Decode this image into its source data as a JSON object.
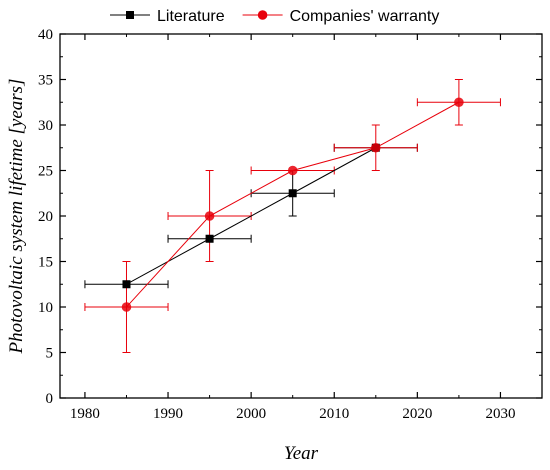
{
  "chart_data": {
    "type": "line",
    "xlabel": "Year",
    "ylabel": "Photovoltaic system lifetime [years]",
    "xlim": [
      1977,
      2035
    ],
    "ylim": [
      0,
      40
    ],
    "x_ticks": [
      1980,
      1990,
      2000,
      2010,
      2020,
      2030
    ],
    "y_ticks": [
      0,
      5,
      10,
      15,
      20,
      25,
      30,
      35,
      40
    ],
    "grid": false,
    "legend_position": "top",
    "series": [
      {
        "name": "Literature",
        "color": "#000000",
        "marker": "square",
        "points": [
          {
            "x": 1985,
            "y": 12.5,
            "x_err": 5,
            "y_err": [
              12.5,
              12.5
            ]
          },
          {
            "x": 1995,
            "y": 17.5,
            "x_err": 5,
            "y_err": [
              17.5,
              17.5
            ]
          },
          {
            "x": 2005,
            "y": 22.5,
            "x_err": 5,
            "y_err": [
              20,
              25
            ]
          },
          {
            "x": 2015,
            "y": 27.5,
            "x_err": 5,
            "y_err": [
              27.5,
              27.5
            ]
          }
        ]
      },
      {
        "name": "Companies' warranty",
        "color": "#e8000b",
        "marker": "circle",
        "points": [
          {
            "x": 1985,
            "y": 10,
            "x_err": 5,
            "y_err": [
              5,
              15
            ]
          },
          {
            "x": 1995,
            "y": 20,
            "x_err": 5,
            "y_err": [
              15,
              25
            ]
          },
          {
            "x": 2005,
            "y": 25,
            "x_err": 5,
            "y_err": [
              25,
              25
            ]
          },
          {
            "x": 2015,
            "y": 27.5,
            "x_err": 5,
            "y_err": [
              25,
              30
            ]
          },
          {
            "x": 2025,
            "y": 32.5,
            "x_err": 5,
            "y_err": [
              30,
              35
            ]
          }
        ]
      }
    ]
  }
}
